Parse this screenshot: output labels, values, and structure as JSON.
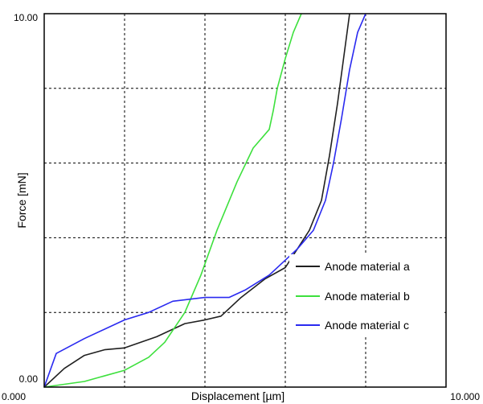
{
  "chart_data": {
    "type": "line",
    "xlabel": "Displacement [µm]",
    "ylabel": "Force [mN]",
    "xlim": [
      0,
      10
    ],
    "ylim": [
      0,
      10
    ],
    "x_tick_labels": [
      "0.000",
      "10.000"
    ],
    "y_tick_labels": [
      "0.00",
      "10.00"
    ],
    "grid": "dashed, 5 columns x 5 rows",
    "legend": "right",
    "series": [
      {
        "name": "Anode material a",
        "color": "#202020",
        "points": [
          [
            0,
            0
          ],
          [
            0.5,
            0.5
          ],
          [
            1.0,
            0.85
          ],
          [
            1.5,
            1.0
          ],
          [
            2.0,
            1.05
          ],
          [
            2.8,
            1.35
          ],
          [
            3.5,
            1.7
          ],
          [
            4.0,
            1.8
          ],
          [
            4.4,
            1.9
          ],
          [
            4.9,
            2.4
          ],
          [
            5.5,
            2.9
          ],
          [
            6.0,
            3.2
          ],
          [
            6.3,
            3.7
          ],
          [
            6.6,
            4.2
          ],
          [
            6.9,
            5.0
          ],
          [
            7.1,
            6.2
          ],
          [
            7.3,
            7.6
          ],
          [
            7.45,
            8.8
          ],
          [
            7.6,
            10.0
          ]
        ]
      },
      {
        "name": "Anode material b",
        "color": "#3de03d",
        "points": [
          [
            0,
            0
          ],
          [
            1.0,
            0.15
          ],
          [
            2.0,
            0.45
          ],
          [
            2.6,
            0.8
          ],
          [
            3.0,
            1.2
          ],
          [
            3.5,
            2.0
          ],
          [
            3.9,
            3.0
          ],
          [
            4.3,
            4.2
          ],
          [
            4.8,
            5.5
          ],
          [
            5.2,
            6.4
          ],
          [
            5.6,
            6.9
          ],
          [
            5.7,
            7.4
          ],
          [
            5.8,
            8.0
          ],
          [
            6.0,
            8.8
          ],
          [
            6.2,
            9.5
          ],
          [
            6.4,
            10.0
          ]
        ]
      },
      {
        "name": "Anode material c",
        "color": "#2a2af0",
        "points": [
          [
            0,
            0
          ],
          [
            0.3,
            0.9
          ],
          [
            1.0,
            1.3
          ],
          [
            2.0,
            1.8
          ],
          [
            2.6,
            2.0
          ],
          [
            3.2,
            2.3
          ],
          [
            4.0,
            2.4
          ],
          [
            4.6,
            2.4
          ],
          [
            5.0,
            2.6
          ],
          [
            5.6,
            3.0
          ],
          [
            6.3,
            3.7
          ],
          [
            6.7,
            4.2
          ],
          [
            7.0,
            5.0
          ],
          [
            7.2,
            6.0
          ],
          [
            7.4,
            7.2
          ],
          [
            7.6,
            8.5
          ],
          [
            7.8,
            9.5
          ],
          [
            8.0,
            10.0
          ]
        ]
      }
    ]
  }
}
